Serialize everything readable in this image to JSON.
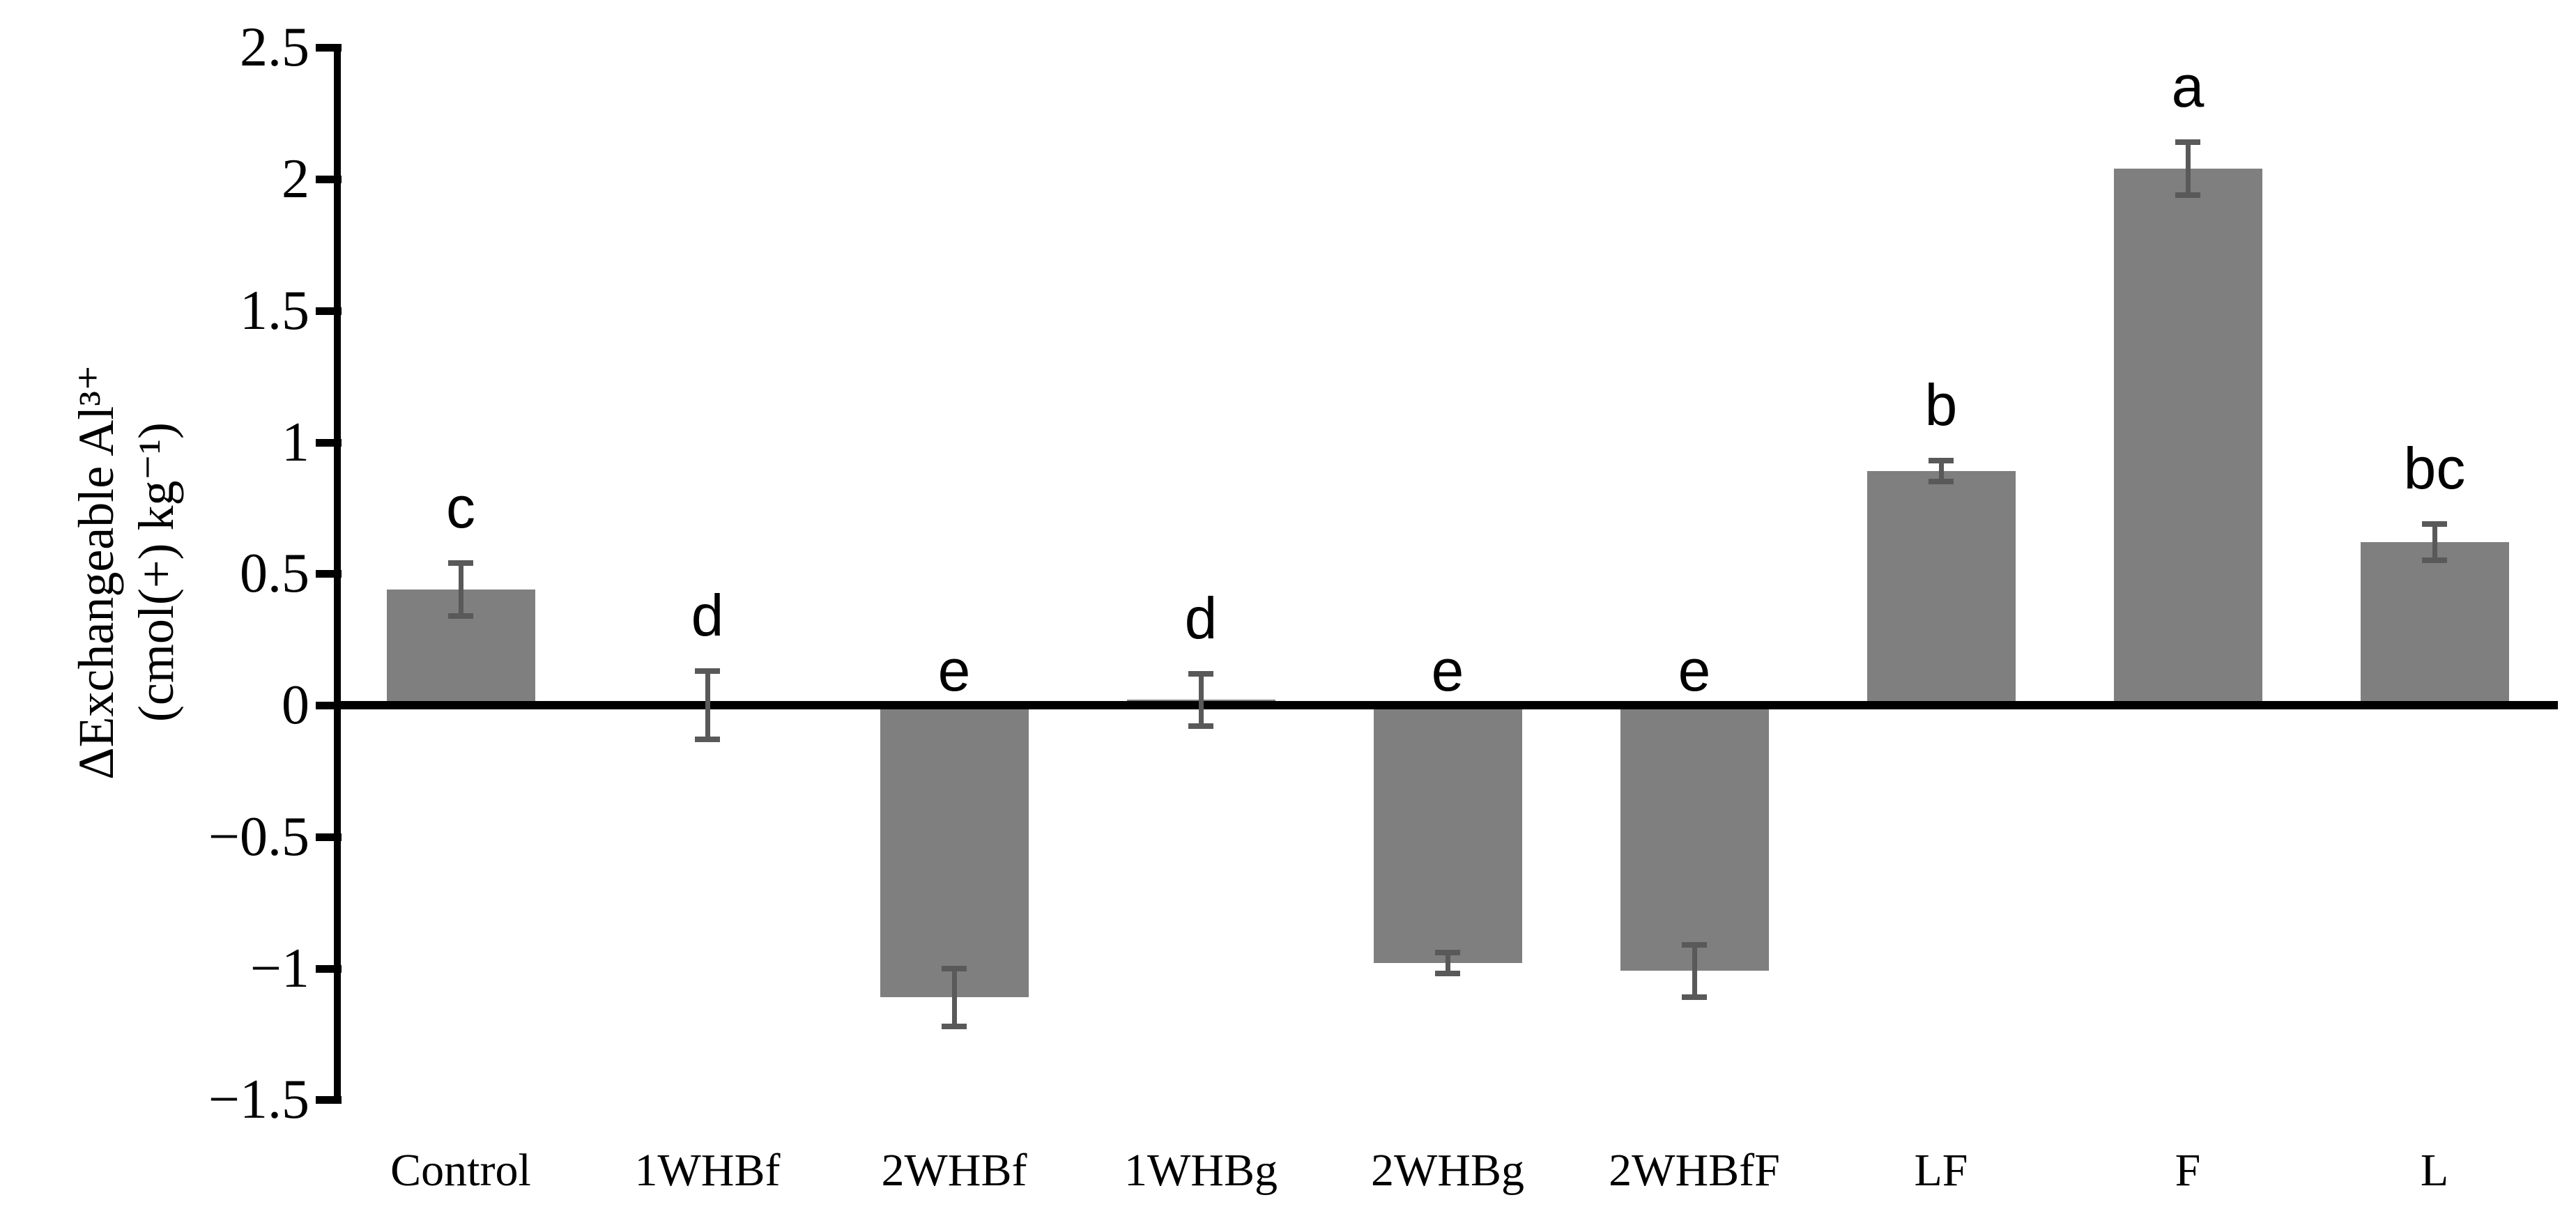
{
  "chart_data": {
    "type": "bar",
    "title": "",
    "ylabel_line1": "ΔExchangeable Al³⁺",
    "ylabel_line2": "(cmol(+) kg⁻¹)",
    "categories": [
      "Control",
      "1WHBf",
      "2WHBf",
      "1WHBg",
      "2WHBg",
      "2WHBfF",
      "LF",
      "F",
      "L"
    ],
    "values": [
      0.44,
      0.0,
      -1.11,
      0.02,
      -0.98,
      -1.01,
      0.89,
      2.04,
      0.62
    ],
    "errors": [
      0.1,
      0.13,
      0.11,
      0.1,
      0.04,
      0.1,
      0.04,
      0.1,
      0.07
    ],
    "sig_letters": [
      "c",
      "d",
      "e",
      "d",
      "e",
      "e",
      "b",
      "a",
      "bc"
    ],
    "ylim": [
      -1.5,
      2.5
    ],
    "ytick_step": 0.5,
    "ytick_labels": [
      "2.5",
      "2",
      "1.5",
      "1",
      "0.5",
      "0",
      "−0.5",
      "−1",
      "−1.5"
    ],
    "ytick_values": [
      2.5,
      2,
      1.5,
      1,
      0.5,
      0,
      -0.5,
      -1,
      -1.5
    ],
    "grid": false,
    "legend": "none",
    "bar_color": "#7f7f7f",
    "error_bar_color": "#595959",
    "axis_color": "#000000",
    "background": "#ffffff"
  }
}
